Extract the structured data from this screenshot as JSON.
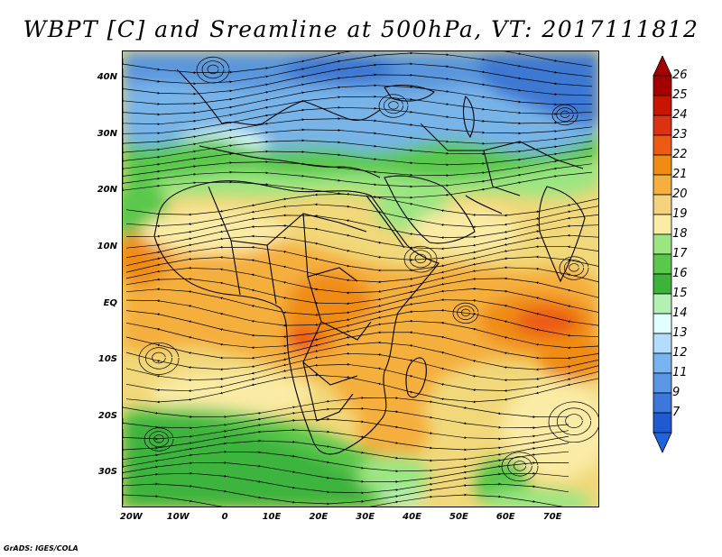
{
  "title": "WBPT [C] and Sreamline at 500hPa, VT: 2017111812",
  "credit": "GrADS: IGES/COLA",
  "map": {
    "lon_range": [
      -22,
      80
    ],
    "lat_range": [
      -36,
      45
    ],
    "y_ticks": [
      {
        "label": "40N",
        "lat": 40
      },
      {
        "label": "30N",
        "lat": 30
      },
      {
        "label": "20N",
        "lat": 20
      },
      {
        "label": "10N",
        "lat": 10
      },
      {
        "label": "EQ",
        "lat": 0
      },
      {
        "label": "10S",
        "lat": -10
      },
      {
        "label": "20S",
        "lat": -20
      },
      {
        "label": "30S",
        "lat": -30
      }
    ],
    "x_ticks": [
      {
        "label": "20W",
        "lon": -20
      },
      {
        "label": "10W",
        "lon": -10
      },
      {
        "label": "0",
        "lon": 0
      },
      {
        "label": "10E",
        "lon": 10
      },
      {
        "label": "20E",
        "lon": 20
      },
      {
        "label": "30E",
        "lon": 30
      },
      {
        "label": "40E",
        "lon": 40
      },
      {
        "label": "50E",
        "lon": 50
      },
      {
        "label": "60E",
        "lon": 60
      },
      {
        "label": "70E",
        "lon": 70
      }
    ]
  },
  "colorbar": {
    "labels": [
      "26",
      "25",
      "24",
      "23",
      "22",
      "21",
      "20",
      "19",
      "18",
      "17",
      "16",
      "15",
      "14",
      "13",
      "12",
      "11",
      "9",
      "7"
    ],
    "colors": [
      "#a50000",
      "#c81400",
      "#dc3214",
      "#ec5a14",
      "#f08c14",
      "#f5af3c",
      "#f5d27d",
      "#faeba5",
      "#9be682",
      "#5ac84b",
      "#3cb43c",
      "#b4f0b4",
      "#e1ffff",
      "#b4dcff",
      "#78b4f0",
      "#5a96e6",
      "#3c78dc",
      "#1e5ad2"
    ],
    "max_arrow_color": "#a50000",
    "min_arrow_color": "#1e64dc"
  },
  "field": {
    "background_color": "#f1d87a",
    "streamline_color": "#000000",
    "coast_color": "#000000"
  }
}
